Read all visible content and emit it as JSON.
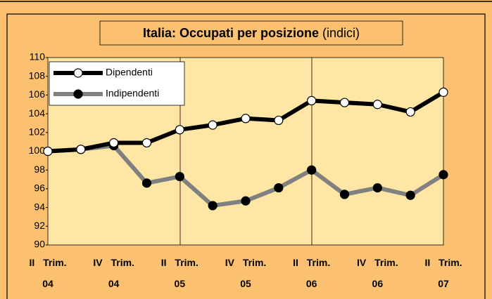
{
  "chart_data": {
    "type": "line",
    "title": "Italia: Occupati per posizione",
    "subtitle": "(indici)",
    "categories": [
      "II Trim. 04",
      null,
      "IV Trim. 04",
      null,
      "II Trim. 05",
      null,
      "IV Trim. 05",
      null,
      "II Trim. 06",
      null,
      "IV Trim. 06",
      null,
      "II Trim. 07"
    ],
    "series": [
      {
        "name": "Dipendenti",
        "color": "#000000",
        "marker_color": "#ffffff",
        "values": [
          100.0,
          100.2,
          100.9,
          100.9,
          102.3,
          102.8,
          103.5,
          103.3,
          105.4,
          105.2,
          105.0,
          104.2,
          106.3
        ]
      },
      {
        "name": "Indipendenti",
        "color": "#808080",
        "marker_color": "#000000",
        "values": [
          100.0,
          100.2,
          100.6,
          96.6,
          97.3,
          94.2,
          94.7,
          96.1,
          98.0,
          95.4,
          96.1,
          95.3,
          97.5
        ]
      }
    ],
    "ylim": [
      90,
      110
    ],
    "yticks": [
      90,
      92,
      94,
      96,
      98,
      100,
      102,
      104,
      106,
      108,
      110
    ],
    "grid": false,
    "legend": "top-left"
  }
}
